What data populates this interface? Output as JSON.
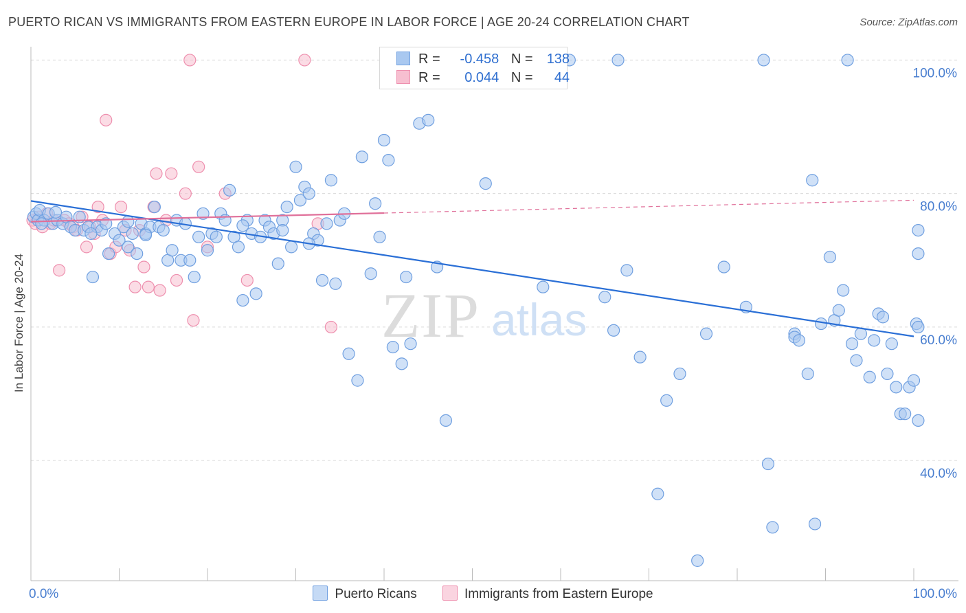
{
  "title": "PUERTO RICAN VS IMMIGRANTS FROM EASTERN EUROPE IN LABOR FORCE | AGE 20-24 CORRELATION CHART",
  "source": "Source: ZipAtlas.com",
  "watermark": {
    "zip": "ZIP",
    "atlas": "atlas"
  },
  "legend": {
    "rows": [
      {
        "r_label": "R =",
        "r_value": "-0.458",
        "n_label": "N =",
        "n_value": "138"
      },
      {
        "r_label": "R =",
        "r_value": "0.044",
        "n_label": "N =",
        "n_value": "44"
      }
    ],
    "bottom": [
      {
        "label": "Puerto Ricans"
      },
      {
        "label": "Immigrants from Eastern Europe"
      }
    ]
  },
  "colors": {
    "blue_fill": "#a9c8f0",
    "blue_stroke": "#6f9fe0",
    "blue_line": "#2a6fd6",
    "pink_fill": "#f7bfd0",
    "pink_stroke": "#ee8fae",
    "pink_line": "#e0709a",
    "grid": "#d9d9d9",
    "tick_text": "#4a7fd0"
  },
  "chart_data": {
    "type": "scatter",
    "title": "PUERTO RICAN VS IMMIGRANTS FROM EASTERN EUROPE IN LABOR FORCE | AGE 20-24 CORRELATION CHART",
    "xlabel": "",
    "ylabel": "In Labor Force | Age 20-24",
    "xlim": [
      0,
      100
    ],
    "ylim": [
      22,
      102
    ],
    "x_tick_labels": [
      "0.0%",
      "100.0%"
    ],
    "y_ticks": [
      40,
      60,
      80,
      100
    ],
    "y_tick_labels": [
      "40.0%",
      "60.0%",
      "80.0%",
      "100.0%"
    ],
    "grid": true,
    "legend_position": "top-center",
    "series": [
      {
        "name": "Puerto Ricans",
        "r": -0.458,
        "n": 138,
        "trend": {
          "x": [
            0,
            100
          ],
          "y": [
            78.9,
            58.6
          ],
          "solid_to": 100
        },
        "points": [
          [
            0.3,
            76.5
          ],
          [
            0.6,
            77.0
          ],
          [
            0.8,
            76.0
          ],
          [
            1.0,
            77.5
          ],
          [
            1.5,
            76.0
          ],
          [
            2.0,
            77.0
          ],
          [
            2.5,
            75.5
          ],
          [
            3.0,
            76.0
          ],
          [
            3.6,
            75.5
          ],
          [
            4.0,
            76.5
          ],
          [
            4.5,
            75.0
          ],
          [
            5.0,
            74.5
          ],
          [
            5.5,
            76.5
          ],
          [
            6.0,
            74.5
          ],
          [
            6.5,
            75.0
          ],
          [
            7.0,
            67.5
          ],
          [
            7.5,
            75.0
          ],
          [
            8.0,
            74.5
          ],
          [
            8.5,
            75.5
          ],
          [
            8.8,
            71.0
          ],
          [
            9.5,
            74.0
          ],
          [
            10.0,
            73.0
          ],
          [
            10.5,
            75.0
          ],
          [
            11.0,
            72.0
          ],
          [
            11.5,
            74.0
          ],
          [
            12.0,
            71.0
          ],
          [
            12.5,
            75.5
          ],
          [
            13.0,
            74.0
          ],
          [
            13.5,
            75.0
          ],
          [
            14.0,
            78.0
          ],
          [
            14.5,
            75.0
          ],
          [
            15.0,
            74.5
          ],
          [
            15.5,
            70.0
          ],
          [
            16.0,
            71.5
          ],
          [
            16.5,
            76.0
          ],
          [
            17.0,
            70.0
          ],
          [
            17.5,
            75.5
          ],
          [
            18.0,
            70.0
          ],
          [
            18.5,
            67.5
          ],
          [
            19.0,
            73.5
          ],
          [
            19.5,
            77.0
          ],
          [
            20.0,
            71.5
          ],
          [
            20.5,
            74.0
          ],
          [
            21.0,
            73.5
          ],
          [
            21.5,
            77.0
          ],
          [
            22.0,
            76.0
          ],
          [
            22.5,
            80.5
          ],
          [
            23.0,
            73.5
          ],
          [
            23.5,
            72.0
          ],
          [
            24.0,
            64.0
          ],
          [
            24.5,
            76.0
          ],
          [
            25.0,
            74.0
          ],
          [
            25.5,
            65.0
          ],
          [
            26.0,
            73.5
          ],
          [
            26.5,
            76.0
          ],
          [
            27.0,
            75.0
          ],
          [
            27.5,
            74.0
          ],
          [
            28.0,
            69.5
          ],
          [
            28.5,
            76.0
          ],
          [
            29.0,
            78.0
          ],
          [
            29.5,
            72.0
          ],
          [
            30.0,
            84.0
          ],
          [
            30.5,
            79.0
          ],
          [
            31.0,
            81.0
          ],
          [
            31.5,
            80.0
          ],
          [
            32.0,
            74.0
          ],
          [
            32.5,
            73.0
          ],
          [
            33.0,
            67.0
          ],
          [
            33.5,
            75.5
          ],
          [
            34.0,
            82.0
          ],
          [
            34.5,
            66.5
          ],
          [
            35.0,
            76.0
          ],
          [
            35.5,
            77.0
          ],
          [
            36.0,
            56.0
          ],
          [
            37.0,
            52.0
          ],
          [
            37.5,
            85.5
          ],
          [
            38.5,
            68.0
          ],
          [
            39.0,
            78.5
          ],
          [
            39.5,
            73.5
          ],
          [
            40.0,
            88.0
          ],
          [
            40.5,
            85.0
          ],
          [
            41.0,
            57.0
          ],
          [
            42.0,
            54.5
          ],
          [
            42.5,
            67.5
          ],
          [
            43.0,
            57.5
          ],
          [
            44.0,
            90.5
          ],
          [
            45.0,
            91.0
          ],
          [
            46.0,
            69.0
          ],
          [
            47.0,
            46.0
          ],
          [
            47.5,
            100.0
          ],
          [
            49.5,
            100.0
          ],
          [
            51.5,
            81.5
          ],
          [
            58.0,
            66.0
          ],
          [
            61.0,
            100.0
          ],
          [
            65.0,
            64.5
          ],
          [
            66.0,
            59.5
          ],
          [
            66.5,
            100.0
          ],
          [
            67.5,
            68.5
          ],
          [
            69.0,
            55.5
          ],
          [
            71.0,
            35.0
          ],
          [
            72.0,
            49.0
          ],
          [
            73.5,
            53.0
          ],
          [
            75.5,
            25.0
          ],
          [
            76.5,
            59.0
          ],
          [
            78.5,
            69.0
          ],
          [
            81.0,
            63.0
          ],
          [
            83.0,
            100.0
          ],
          [
            83.5,
            39.5
          ],
          [
            84.0,
            30.0
          ],
          [
            86.5,
            59.0
          ],
          [
            86.5,
            58.5
          ],
          [
            87.0,
            58.0
          ],
          [
            88.0,
            53.0
          ],
          [
            88.5,
            82.0
          ],
          [
            88.8,
            30.5
          ],
          [
            89.5,
            60.5
          ],
          [
            90.5,
            70.5
          ],
          [
            91.0,
            61.0
          ],
          [
            91.5,
            62.5
          ],
          [
            92.0,
            65.5
          ],
          [
            92.5,
            100.0
          ],
          [
            93.0,
            57.5
          ],
          [
            93.5,
            55.0
          ],
          [
            94.0,
            59.0
          ],
          [
            95.0,
            52.5
          ],
          [
            95.5,
            58.0
          ],
          [
            96.0,
            62.0
          ],
          [
            96.5,
            61.5
          ],
          [
            97.0,
            53.0
          ],
          [
            97.5,
            57.5
          ],
          [
            98.0,
            51.0
          ],
          [
            98.5,
            47.0
          ],
          [
            99.0,
            47.0
          ],
          [
            99.5,
            51.0
          ],
          [
            100.0,
            52.0
          ],
          [
            100.3,
            60.5
          ],
          [
            101.0,
            71.0
          ],
          [
            101.5,
            74.5
          ],
          [
            102.0,
            46.0
          ],
          [
            102.5,
            60.0
          ],
          [
            1.2,
            75.5
          ],
          [
            2.8,
            77.2
          ],
          [
            6.8,
            74.0
          ],
          [
            11.0,
            75.8
          ],
          [
            13.0,
            73.8
          ],
          [
            24.0,
            75.2
          ],
          [
            28.5,
            74.5
          ],
          [
            31.5,
            72.5
          ]
        ]
      },
      {
        "name": "Immigrants from Eastern Europe",
        "r": 0.044,
        "n": 44,
        "trend": {
          "x": [
            0,
            100
          ],
          "y": [
            75.8,
            79.0
          ],
          "solid_to": 40
        },
        "points": [
          [
            0.2,
            76.0
          ],
          [
            0.5,
            75.5
          ],
          [
            0.9,
            76.5
          ],
          [
            1.3,
            75.0
          ],
          [
            1.8,
            77.0
          ],
          [
            2.2,
            75.5
          ],
          [
            2.6,
            76.0
          ],
          [
            3.2,
            68.5
          ],
          [
            3.8,
            76.0
          ],
          [
            4.3,
            75.5
          ],
          [
            4.8,
            75.0
          ],
          [
            5.2,
            74.5
          ],
          [
            5.8,
            76.5
          ],
          [
            6.3,
            72.0
          ],
          [
            6.7,
            75.0
          ],
          [
            7.2,
            74.0
          ],
          [
            7.6,
            78.0
          ],
          [
            8.1,
            76.0
          ],
          [
            8.5,
            91.0
          ],
          [
            9.0,
            71.0
          ],
          [
            9.6,
            72.0
          ],
          [
            10.2,
            78.0
          ],
          [
            10.7,
            74.5
          ],
          [
            11.2,
            71.5
          ],
          [
            11.8,
            66.0
          ],
          [
            12.3,
            74.5
          ],
          [
            12.8,
            69.0
          ],
          [
            13.3,
            66.0
          ],
          [
            13.9,
            78.0
          ],
          [
            14.2,
            83.0
          ],
          [
            14.6,
            65.5
          ],
          [
            15.3,
            76.0
          ],
          [
            15.9,
            83.0
          ],
          [
            16.5,
            67.0
          ],
          [
            17.5,
            80.0
          ],
          [
            18.0,
            100.0
          ],
          [
            18.4,
            61.0
          ],
          [
            19.0,
            84.0
          ],
          [
            20.0,
            72.0
          ],
          [
            22.0,
            80.0
          ],
          [
            24.5,
            67.0
          ],
          [
            31.0,
            100.0
          ],
          [
            34.0,
            60.0
          ],
          [
            32.5,
            75.5
          ]
        ]
      }
    ]
  }
}
